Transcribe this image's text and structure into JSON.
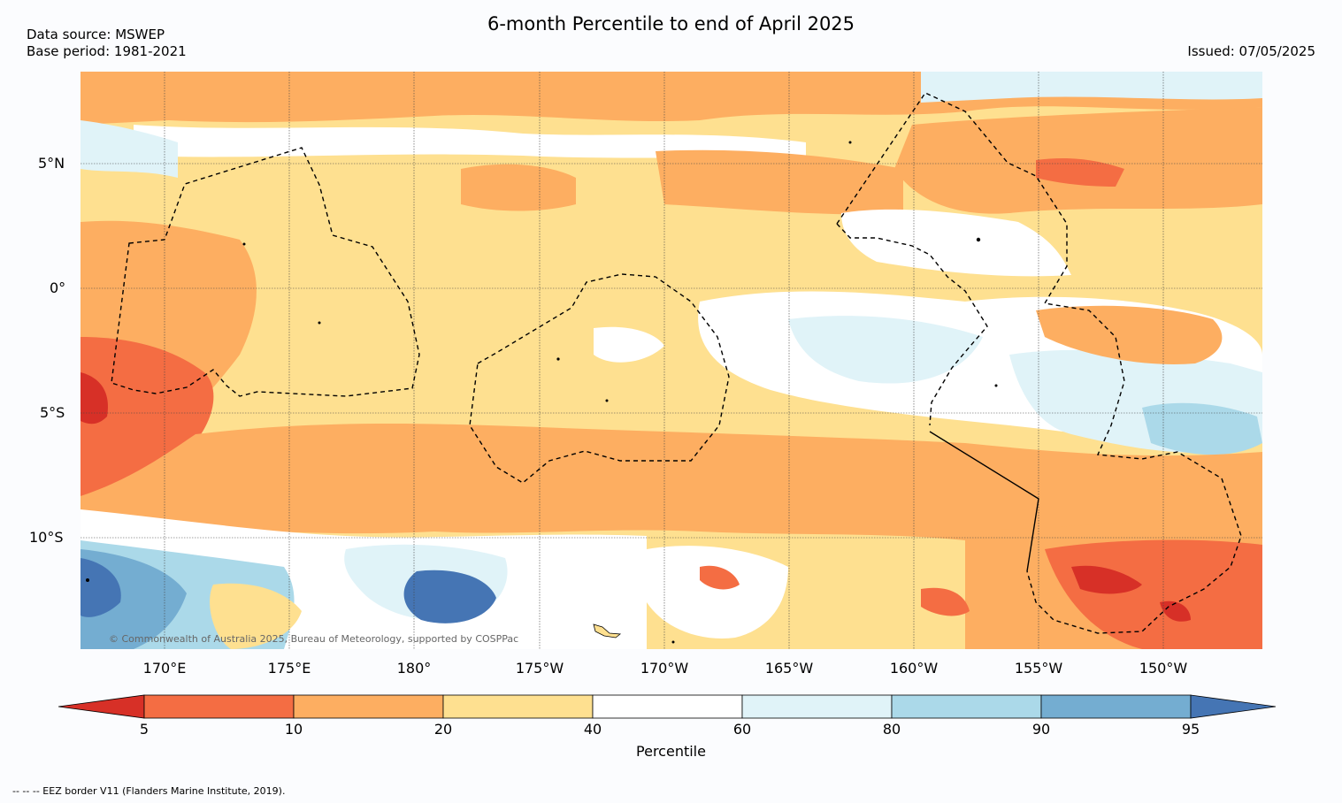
{
  "header": {
    "title": "6-month Percentile to end of April 2025",
    "data_source": "Data source: MSWEP",
    "base_period": "Base period: 1981-2021",
    "issued": "Issued: 07/05/2025"
  },
  "map": {
    "lat_labels": [
      "5°N",
      "0°",
      "5°S",
      "10°S"
    ],
    "lon_labels": [
      "170°E",
      "175°E",
      "180°",
      "175°W",
      "170°W",
      "165°W",
      "160°W",
      "155°W",
      "150°W"
    ],
    "credit": "© Commonwealth of Australia 2025, Bureau of Meteorology, supported by COSPPac"
  },
  "colorbar": {
    "label": "Percentile",
    "ticks": [
      "5",
      "10",
      "20",
      "40",
      "60",
      "80",
      "90",
      "95"
    ],
    "colors": [
      "#d73027",
      "#f46d43",
      "#fdae61",
      "#fee090",
      "#ffffff",
      "#e0f3f8",
      "#abd9e9",
      "#74add1",
      "#4575b4"
    ]
  },
  "footer": "--  --  -- EEZ border V11 (Flanders Marine Institute, 2019)."
}
